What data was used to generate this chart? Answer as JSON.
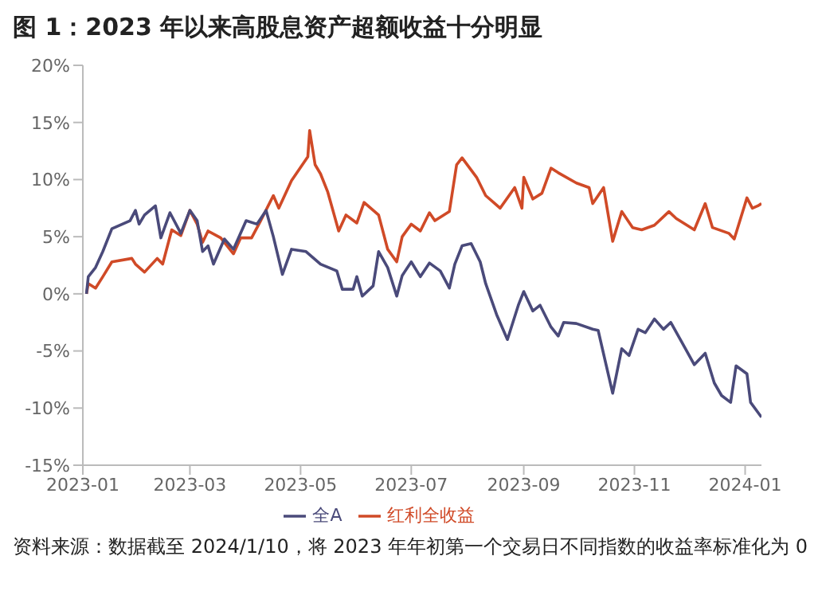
{
  "chart_data": {
    "type": "line",
    "title": "图 1：2023 年以来高股息资产超额收益十分明显",
    "annotations": [
      "资料来源：数据截至 2024/1/10，将 2023 年年初第一个交易日不同指数的收益率标准化为 0"
    ],
    "xlim": [
      "2023-01-01",
      "2024-01-10"
    ],
    "xticks": [
      "2023-01",
      "2023-03",
      "2023-05",
      "2023-07",
      "2023-09",
      "2023-11",
      "2024-01"
    ],
    "ylim": [
      -15,
      20
    ],
    "yticks": [
      {
        "value": -15,
        "label": "-15%"
      },
      {
        "value": -10,
        "label": "-10%"
      },
      {
        "value": -5,
        "label": "-5%"
      },
      {
        "value": 0,
        "label": "0%"
      },
      {
        "value": 5,
        "label": "5%"
      },
      {
        "value": 10,
        "label": "10%"
      },
      {
        "value": 15,
        "label": "15%"
      },
      {
        "value": 20,
        "label": "20%"
      }
    ],
    "grid": false,
    "legend": "bottom",
    "series": [
      {
        "name": "红利全收益",
        "color": "#d04a27",
        "x": [
          "2023-01-03",
          "2023-01-04",
          "2023-01-08",
          "2023-01-12",
          "2023-01-17",
          "2023-01-28",
          "2023-01-30",
          "2023-02-04",
          "2023-02-11",
          "2023-02-14",
          "2023-02-19",
          "2023-02-24",
          "2023-03-01",
          "2023-03-05",
          "2023-03-08",
          "2023-03-11",
          "2023-03-18",
          "2023-03-25",
          "2023-03-29",
          "2023-04-04",
          "2023-04-09",
          "2023-04-16",
          "2023-04-19",
          "2023-04-26",
          "2023-05-05",
          "2023-05-06",
          "2023-05-09",
          "2023-05-12",
          "2023-05-16",
          "2023-05-22",
          "2023-05-26",
          "2023-06-01",
          "2023-06-05",
          "2023-06-13",
          "2023-06-18",
          "2023-06-23",
          "2023-06-26",
          "2023-07-01",
          "2023-07-06",
          "2023-07-11",
          "2023-07-14",
          "2023-07-22",
          "2023-07-26",
          "2023-07-29",
          "2023-08-06",
          "2023-08-11",
          "2023-08-19",
          "2023-08-27",
          "2023-08-31",
          "2023-09-01",
          "2023-09-06",
          "2023-09-11",
          "2023-09-16",
          "2023-09-20",
          "2023-09-30",
          "2023-10-07",
          "2023-10-09",
          "2023-10-15",
          "2023-10-20",
          "2023-10-25",
          "2023-10-31",
          "2023-11-05",
          "2023-11-12",
          "2023-11-20",
          "2023-11-24",
          "2023-12-04",
          "2023-12-10",
          "2023-12-14",
          "2023-12-23",
          "2023-12-26",
          "2024-01-02",
          "2024-01-05",
          "2024-01-08",
          "2024-01-10"
        ],
        "values": [
          0,
          0.9,
          0.5,
          1.5,
          2.8,
          3.1,
          2.6,
          1.9,
          3.1,
          2.6,
          5.6,
          5.1,
          7.3,
          6.1,
          4.5,
          5.5,
          4.9,
          3.5,
          4.9,
          4.9,
          6.4,
          8.6,
          7.5,
          9.9,
          12,
          14.3,
          11.3,
          10.5,
          8.9,
          5.5,
          6.9,
          6.2,
          8,
          6.9,
          3.9,
          2.8,
          5,
          6.1,
          5.5,
          7.1,
          6.4,
          7.2,
          11.3,
          11.9,
          10.2,
          8.6,
          7.5,
          9.3,
          7.5,
          10.2,
          8.3,
          8.8,
          11,
          10.6,
          9.7,
          9.3,
          7.9,
          9.3,
          4.6,
          7.2,
          5.8,
          5.6,
          6,
          7.2,
          6.6,
          5.6,
          7.9,
          5.8,
          5.3,
          4.8,
          8.4,
          7.5,
          7.7,
          7.9
        ]
      },
      {
        "name": "全A",
        "color": "#4a4a7a",
        "x": [
          "2023-01-03",
          "2023-01-04",
          "2023-01-08",
          "2023-01-12",
          "2023-01-17",
          "2023-01-27",
          "2023-01-30",
          "2023-02-01",
          "2023-02-04",
          "2023-02-10",
          "2023-02-13",
          "2023-02-18",
          "2023-02-24",
          "2023-03-01",
          "2023-03-05",
          "2023-03-08",
          "2023-03-11",
          "2023-03-14",
          "2023-03-20",
          "2023-03-25",
          "2023-04-01",
          "2023-04-07",
          "2023-04-12",
          "2023-04-16",
          "2023-04-21",
          "2023-04-26",
          "2023-05-04",
          "2023-05-12",
          "2023-05-21",
          "2023-05-24",
          "2023-05-30",
          "2023-06-01",
          "2023-06-04",
          "2023-06-10",
          "2023-06-13",
          "2023-06-18",
          "2023-06-23",
          "2023-06-26",
          "2023-07-01",
          "2023-07-06",
          "2023-07-11",
          "2023-07-17",
          "2023-07-22",
          "2023-07-25",
          "2023-07-29",
          "2023-08-03",
          "2023-08-08",
          "2023-08-11",
          "2023-08-17",
          "2023-08-23",
          "2023-08-29",
          "2023-09-01",
          "2023-09-06",
          "2023-09-10",
          "2023-09-16",
          "2023-09-20",
          "2023-09-23",
          "2023-09-30",
          "2023-10-09",
          "2023-10-12",
          "2023-10-20",
          "2023-10-25",
          "2023-10-29",
          "2023-11-03",
          "2023-11-07",
          "2023-11-12",
          "2023-11-17",
          "2023-11-21",
          "2023-11-27",
          "2023-12-04",
          "2023-12-10",
          "2023-12-15",
          "2023-12-19",
          "2023-12-24",
          "2023-12-27",
          "2024-01-02",
          "2024-01-04",
          "2024-01-10"
        ],
        "values": [
          0,
          1.5,
          2.3,
          3.7,
          5.7,
          6.4,
          7.3,
          6.1,
          6.9,
          7.7,
          4.9,
          7.1,
          5.3,
          7.3,
          6.4,
          3.7,
          4.2,
          2.6,
          4.8,
          3.9,
          6.4,
          6.1,
          7.3,
          5,
          1.7,
          3.9,
          3.7,
          2.6,
          2,
          0.4,
          0.4,
          1.5,
          -0.2,
          0.7,
          3.7,
          2.3,
          -0.2,
          1.6,
          2.8,
          1.5,
          2.7,
          2,
          0.5,
          2.6,
          4.2,
          4.4,
          2.8,
          0.9,
          -1.8,
          -4,
          -1,
          0.2,
          -1.5,
          -1,
          -2.9,
          -3.7,
          -2.5,
          -2.6,
          -3.1,
          -3.2,
          -8.7,
          -4.8,
          -5.4,
          -3.1,
          -3.4,
          -2.2,
          -3.1,
          -2.5,
          -4.2,
          -6.2,
          -5.2,
          -7.8,
          -8.9,
          -9.5,
          -6.3,
          -7,
          -9.5,
          -10.8
        ]
      }
    ]
  }
}
